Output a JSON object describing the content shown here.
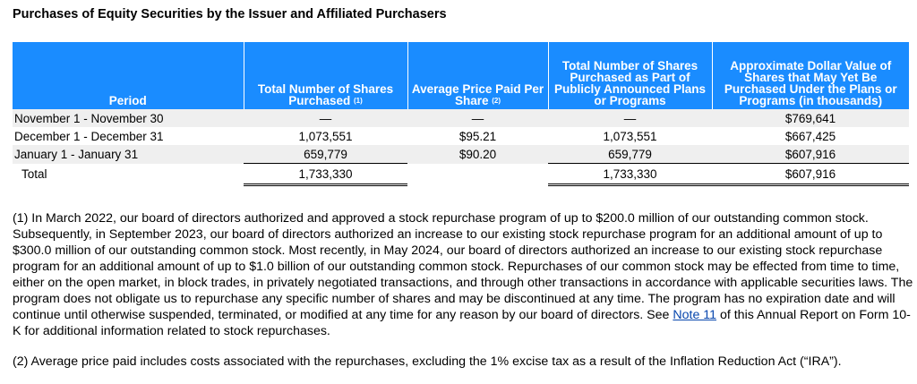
{
  "title": "Purchases of Equity Securities by the Issuer and Affiliated Purchasers",
  "table": {
    "header": [
      {
        "text": "Period"
      },
      {
        "text": "Total Number of Shares Purchased",
        "note": "(1)"
      },
      {
        "text": "Average Price Paid Per Share",
        "note": "(2)"
      },
      {
        "text": "Total Number of Shares Purchased as Part of Publicly Announced Plans or Programs"
      },
      {
        "text": "Approximate Dollar Value of Shares that May Yet Be Purchased Under the Plans or Programs (in thousands)"
      }
    ],
    "rows": [
      [
        "November 1 - November 30",
        "—",
        "—",
        "—",
        "$769,641"
      ],
      [
        "December 1 - December 31",
        "1,073,551",
        "$95.21",
        "1,073,551",
        "$667,425"
      ],
      [
        "January 1 - January 31",
        "659,779",
        "$90.20",
        "659,779",
        "$607,916"
      ]
    ],
    "total": {
      "label": "Total",
      "shares": "1,733,330",
      "announced": "1,733,330",
      "remaining": "$607,916"
    }
  },
  "footnotes": {
    "note1": {
      "before": "(1) In March 2022, our board of directors authorized and approved a stock repurchase program of up to $200.0 million of our outstanding common stock. Subsequently, in September 2023, our board of directors authorized an increase to our existing stock repurchase program for an additional amount of up to $300.0 million of our outstanding common stock. Most recently, in May 2024, our board of directors authorized an increase to our existing stock repurchase program for an additional amount of up to $1.0 billion of our outstanding common stock. Repurchases of our common stock may be effected from time to time, either on the open market, in block trades, in privately negotiated transactions, and through other transactions in accordance with applicable securities laws. The program does not obligate us to repurchase any specific number of shares and may be discontinued at any time. The program has no expiration date and will continue until otherwise suspended, terminated, or modified at any time for any reason by our board of directors. See ",
      "link": "Note 11",
      "after": " of this Annual Report on Form 10-K for additional information related to stock repurchases."
    },
    "note2": "(2) Average price paid includes costs associated with the repurchases, excluding the 1% excise tax as a result of the Inflation Reduction Act (“IRA”)."
  }
}
